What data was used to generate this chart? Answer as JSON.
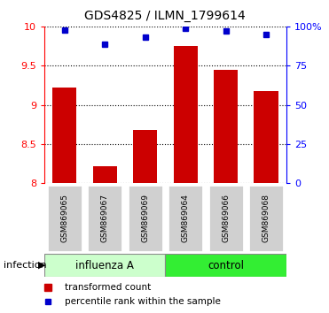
{
  "title": "GDS4825 / ILMN_1799614",
  "samples": [
    "GSM869065",
    "GSM869067",
    "GSM869069",
    "GSM869064",
    "GSM869066",
    "GSM869068"
  ],
  "group_labels": [
    "influenza A",
    "control"
  ],
  "bar_values": [
    9.22,
    8.22,
    8.68,
    9.75,
    9.45,
    9.18
  ],
  "dot_values": [
    98,
    89,
    93,
    99,
    97,
    95
  ],
  "bar_color": "#cc0000",
  "dot_color": "#0000cc",
  "ymin": 8.0,
  "ymax": 10.0,
  "yticks": [
    8.0,
    8.5,
    9.0,
    9.5,
    10.0
  ],
  "ytick_labels": [
    "8",
    "8.5",
    "9",
    "9.5",
    "10"
  ],
  "y2min": 0,
  "y2max": 100,
  "y2ticks": [
    0,
    25,
    50,
    75,
    100
  ],
  "y2ticklabels": [
    "0",
    "25",
    "50",
    "75",
    "100%"
  ],
  "infection_label": "infection",
  "legend_bar_label": "transformed count",
  "legend_dot_label": "percentile rank within the sample",
  "bar_width": 0.6,
  "label_box_color": "#d0d0d0",
  "influenza_bg": "#ccffcc",
  "control_bg": "#33ee33",
  "fig_width": 3.71,
  "fig_height": 3.54,
  "dpi": 100
}
